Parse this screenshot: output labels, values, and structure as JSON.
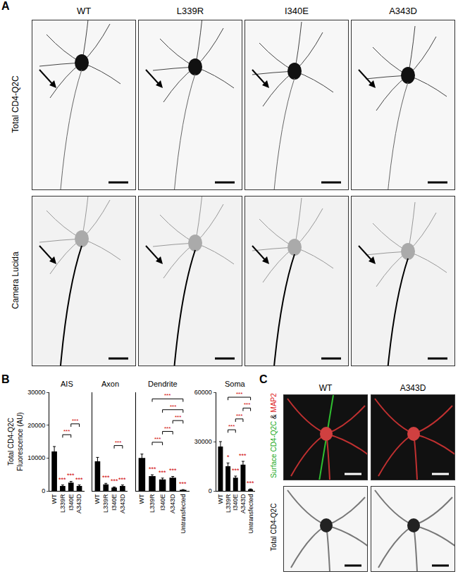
{
  "figure": {
    "panel_labels": [
      "A",
      "B",
      "C"
    ],
    "panel_a": {
      "columns": [
        "WT",
        "L339R",
        "I340E",
        "A343D"
      ],
      "rows": [
        "Total CD4-Q2C",
        "Camera Lucida"
      ]
    },
    "panel_c": {
      "columns": [
        "WT",
        "A343D"
      ],
      "rows": [
        [
          {
            "text": "Surface CD4-Q2C",
            "color": "#22aa22"
          },
          {
            "text": " & ",
            "color": "#000000"
          },
          {
            "text": "MAP2",
            "color": "#dd2222"
          }
        ],
        [
          {
            "text": "Total CD4-Q2C",
            "color": "#000000"
          }
        ]
      ]
    }
  },
  "chart_data": [
    {
      "type": "bar",
      "title": "AIS",
      "y_label": [
        "Total CD4-Q2C",
        "Fluorescence (AU)"
      ],
      "categories": [
        "WT",
        "L339R",
        "I340E",
        "A343D"
      ],
      "values": [
        12000,
        1500,
        2500,
        1500
      ],
      "errors": [
        1500,
        300,
        400,
        300
      ],
      "color": "#000000",
      "ylim": [
        0,
        30000
      ],
      "yticks": [
        0,
        10000,
        20000,
        30000
      ],
      "marks": [
        {
          "category": "L339R",
          "label": "***",
          "color": "#d00000"
        },
        {
          "category": "I340E",
          "label": "***",
          "color": "#d00000"
        },
        {
          "category": "A343D",
          "label": "***",
          "color": "#d00000"
        }
      ],
      "brackets": [
        {
          "from": "L339R",
          "to": "I340E",
          "label": "***",
          "color": "#d00000"
        },
        {
          "from": "I340E",
          "to": "A343D",
          "label": "***",
          "color": "#d00000"
        }
      ]
    },
    {
      "type": "bar",
      "title": "Axon",
      "tick_labels": "x",
      "categories": [
        "WT",
        "L339R",
        "I340E",
        "A343D"
      ],
      "values": [
        9000,
        2000,
        1000,
        1500
      ],
      "errors": [
        1200,
        300,
        200,
        300
      ],
      "color": "#000000",
      "ylim": [
        0,
        30000
      ],
      "marks": [
        {
          "category": "L339R",
          "label": "***",
          "color": "#d00000"
        },
        {
          "category": "I340E",
          "label": "***",
          "color": "#d00000"
        },
        {
          "category": "A343D",
          "label": "***",
          "color": "#d00000"
        }
      ],
      "brackets": [
        {
          "from": "I340E",
          "to": "A343D",
          "label": "***",
          "color": "#d00000"
        }
      ]
    },
    {
      "type": "bar",
      "title": "Dendrite",
      "tick_labels": "x",
      "categories": [
        "WT",
        "L339R",
        "I340E",
        "A343D",
        "Untransfected"
      ],
      "values": [
        10000,
        4500,
        3500,
        4000,
        300
      ],
      "errors": [
        1200,
        400,
        400,
        400,
        100
      ],
      "color": "#000000",
      "ylim": [
        0,
        30000
      ],
      "marks": [
        {
          "category": "L339R",
          "label": "***",
          "color": "#d00000"
        },
        {
          "category": "I340E",
          "label": "***",
          "color": "#d00000"
        },
        {
          "category": "A343D",
          "label": "***",
          "color": "#d00000"
        },
        {
          "category": "Untransfected",
          "label": "***",
          "color": "#d00000"
        }
      ],
      "brackets": [
        {
          "from": "L339R",
          "to": "I340E",
          "label": "***",
          "color": "#d00000"
        },
        {
          "from": "I340E",
          "to": "A343D",
          "label": "***",
          "color": "#d00000"
        },
        {
          "from": "A343D",
          "to": "Untransfected",
          "label": "***",
          "color": "#d00000"
        },
        {
          "from": "I340E",
          "to": "Untransfected",
          "label": "***",
          "color": "#d00000"
        },
        {
          "from": "L339R",
          "to": "Untransfected",
          "label": "***",
          "color": "#d00000"
        }
      ]
    },
    {
      "type": "bar",
      "title": "Soma",
      "categories": [
        "WT",
        "L339R",
        "I340E",
        "A343D",
        "Untransfected"
      ],
      "values": [
        27000,
        15000,
        8000,
        16000,
        1000
      ],
      "errors": [
        3000,
        2000,
        1000,
        2000,
        200
      ],
      "color": "#000000",
      "ylim": [
        0,
        60000
      ],
      "yticks": [
        0,
        30000,
        60000
      ],
      "marks": [
        {
          "category": "L339R",
          "label": "*",
          "color": "#d00000"
        },
        {
          "category": "I340E",
          "label": "***",
          "color": "#d00000"
        },
        {
          "category": "A343D",
          "label": "***",
          "color": "#d00000"
        },
        {
          "category": "Untransfected",
          "label": "***",
          "color": "#d00000"
        }
      ],
      "brackets": [
        {
          "from": "L339R",
          "to": "I340E",
          "label": "***",
          "color": "#d00000"
        },
        {
          "from": "I340E",
          "to": "A343D",
          "label": "***",
          "color": "#d00000"
        },
        {
          "from": "A343D",
          "to": "Untransfected",
          "label": "***",
          "color": "#d00000"
        },
        {
          "from": "L339R",
          "to": "Untransfected",
          "label": "***",
          "color": "#d00000"
        }
      ]
    }
  ]
}
